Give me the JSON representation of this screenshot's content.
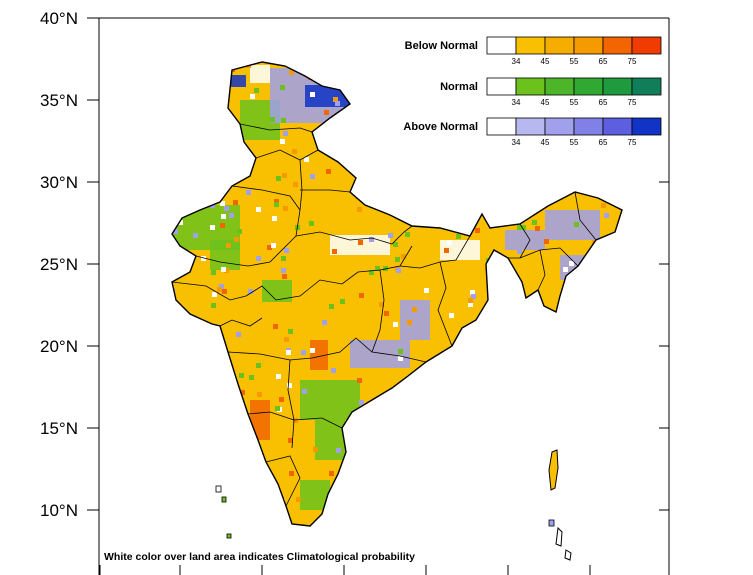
{
  "map": {
    "lat_labels": [
      "40°N",
      "35°N",
      "30°N",
      "25°N",
      "20°N",
      "15°N",
      "10°N"
    ],
    "note": "White color over land area indicates Climatological probability",
    "legend": [
      {
        "title": "Below Normal",
        "colors": [
          "#ffffff",
          "#f8c000",
          "#f6ad00",
          "#f59a00",
          "#f26500",
          "#f03c00"
        ],
        "ticks": [
          "34",
          "45",
          "55",
          "65",
          "75"
        ]
      },
      {
        "title": "Normal",
        "colors": [
          "#ffffff",
          "#6cc21c",
          "#4cb52a",
          "#31a831",
          "#1f9a3e",
          "#117e5a"
        ],
        "ticks": [
          "34",
          "45",
          "55",
          "65",
          "75"
        ]
      },
      {
        "title": "Above Normal",
        "colors": [
          "#ffffff",
          "#b8b8f0",
          "#a0a0ec",
          "#8080e6",
          "#5e5ee0",
          "#1133c6"
        ],
        "ticks": [
          "34",
          "45",
          "55",
          "65",
          "75"
        ]
      }
    ],
    "colors": {
      "base": "#f8c000",
      "normal": "#6cc21c",
      "above": "#a0a0ec",
      "above_dark": "#1133c6",
      "high": "#f26500"
    }
  }
}
